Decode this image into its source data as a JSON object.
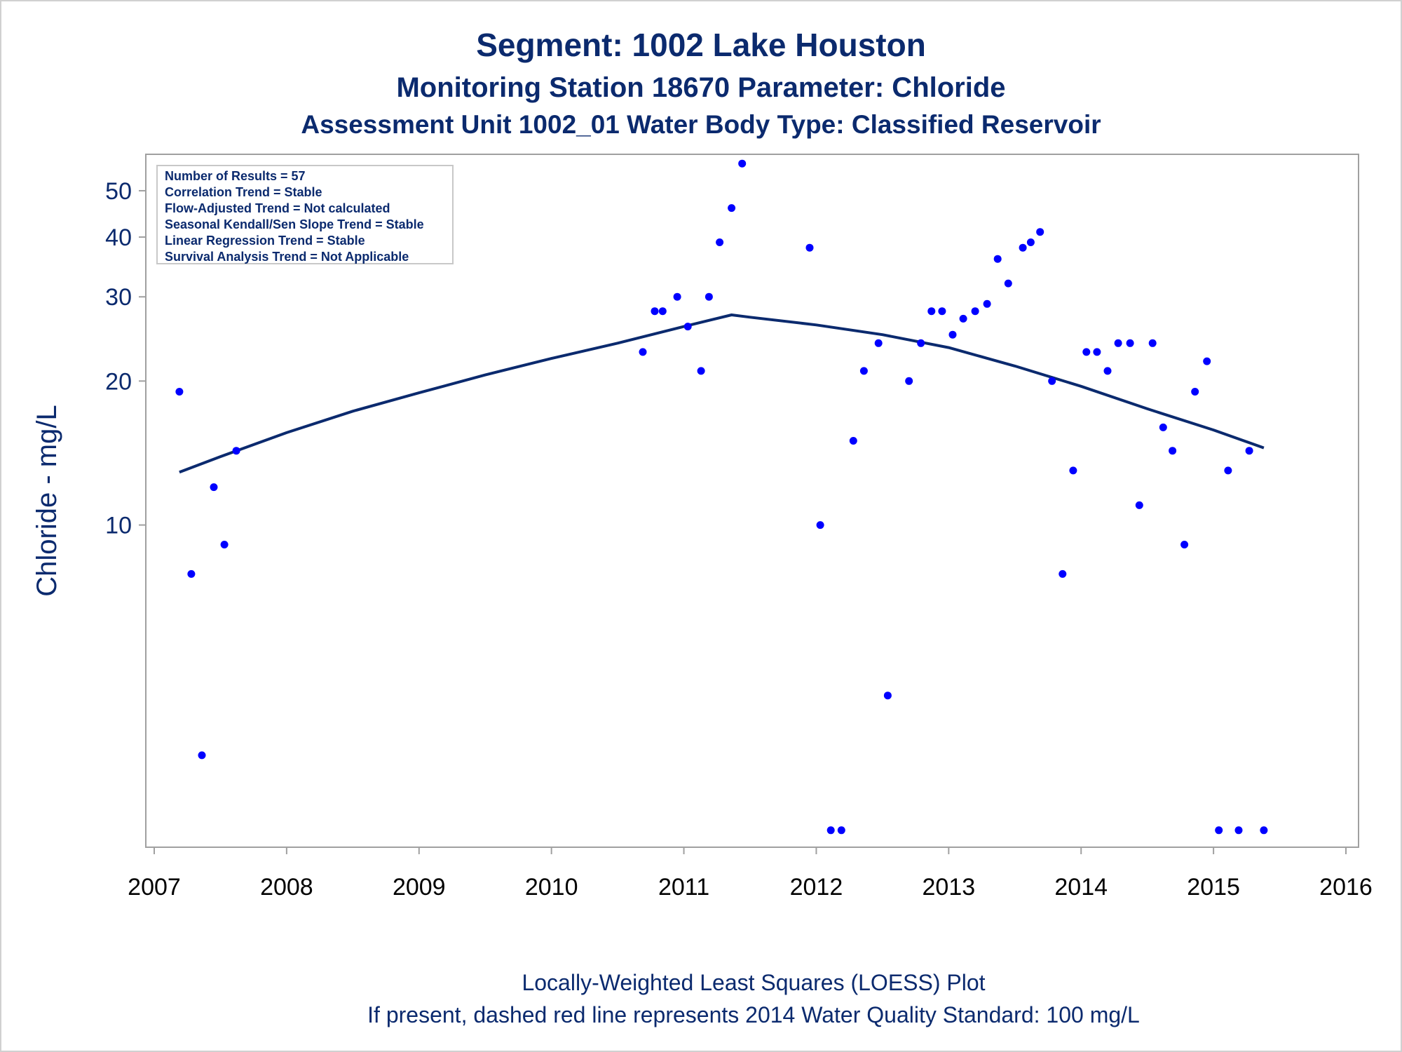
{
  "colors": {
    "text": "#0b2a6e",
    "points": "#0000ff",
    "trend_line": "#0b2a6e",
    "frame": "#a0a0a0"
  },
  "titles": {
    "line1": "Segment: 1002  Lake Houston",
    "line2": "Monitoring Station 18670 Parameter: Chloride",
    "line3": "Assessment Unit 1002_01   Water Body Type: Classified Reservoir"
  },
  "footnotes": {
    "line1": "Locally-Weighted Least Squares (LOESS) Plot",
    "line2": "If present, dashed red line represents 2014 Water Quality Standard: 100    mg/L"
  },
  "stats_box": [
    "Number of Results = 57",
    "Correlation Trend = Stable",
    "Flow-Adjusted Trend = Not calculated",
    "Seasonal Kendall/Sen Slope Trend = Stable",
    "Linear Regression Trend = Stable",
    "Survival Analysis Trend = Not Applicable"
  ],
  "chart_data": {
    "type": "scatter",
    "ylabel": "Chloride - mg/L",
    "xlabel": "",
    "y_scale": "log",
    "ylim": [
      2.2,
      58
    ],
    "xlim": [
      2007,
      2016
    ],
    "x_ticks": [
      "2007",
      "2008",
      "2009",
      "2010",
      "2011",
      "2012",
      "2013",
      "2014",
      "2015",
      "2016"
    ],
    "y_ticks": [
      10,
      20,
      30,
      40,
      50
    ],
    "grid": false,
    "legend": "top-left",
    "series": [
      {
        "points": [
          [
            2007.19,
            19
          ],
          [
            2007.28,
            7.9
          ],
          [
            2007.36,
            3.3
          ],
          [
            2007.45,
            12
          ],
          [
            2007.53,
            9.1
          ],
          [
            2007.62,
            14.3
          ],
          [
            2010.69,
            23
          ],
          [
            2010.78,
            28
          ],
          [
            2010.84,
            28
          ],
          [
            2010.95,
            30
          ],
          [
            2011.03,
            26
          ],
          [
            2011.13,
            21
          ],
          [
            2011.19,
            30
          ],
          [
            2011.27,
            39
          ],
          [
            2011.36,
            46
          ],
          [
            2011.44,
            57
          ],
          [
            2011.95,
            38
          ],
          [
            2012.03,
            10
          ],
          [
            2012.11,
            2.3
          ],
          [
            2012.19,
            2.3
          ],
          [
            2012.28,
            15
          ],
          [
            2012.36,
            21
          ],
          [
            2012.47,
            24
          ],
          [
            2012.54,
            4.4
          ],
          [
            2012.7,
            20
          ],
          [
            2012.79,
            24
          ],
          [
            2012.87,
            28
          ],
          [
            2012.95,
            28
          ],
          [
            2013.03,
            25
          ],
          [
            2013.11,
            27
          ],
          [
            2013.2,
            28
          ],
          [
            2013.29,
            29
          ],
          [
            2013.37,
            36
          ],
          [
            2013.45,
            32
          ],
          [
            2013.56,
            38
          ],
          [
            2013.62,
            39
          ],
          [
            2013.69,
            41
          ],
          [
            2013.78,
            20
          ],
          [
            2013.86,
            7.9
          ],
          [
            2013.94,
            13
          ],
          [
            2014.04,
            23
          ],
          [
            2014.12,
            23
          ],
          [
            2014.2,
            21
          ],
          [
            2014.28,
            24
          ],
          [
            2014.37,
            24
          ],
          [
            2014.44,
            11
          ],
          [
            2014.54,
            24
          ],
          [
            2014.62,
            16
          ],
          [
            2014.69,
            14.3
          ],
          [
            2014.78,
            9.1
          ],
          [
            2014.86,
            19
          ],
          [
            2014.95,
            22
          ],
          [
            2015.04,
            2.3
          ],
          [
            2015.11,
            13
          ],
          [
            2015.19,
            2.3
          ],
          [
            2015.27,
            14.3
          ],
          [
            2015.38,
            2.3
          ]
        ]
      }
    ],
    "loess": [
      [
        2007.19,
        12.9
      ],
      [
        2007.5,
        13.9
      ],
      [
        2008.0,
        15.6
      ],
      [
        2008.5,
        17.3
      ],
      [
        2009.0,
        18.9
      ],
      [
        2009.5,
        20.6
      ],
      [
        2010.0,
        22.3
      ],
      [
        2010.5,
        24.0
      ],
      [
        2011.0,
        26.0
      ],
      [
        2011.36,
        27.5
      ],
      [
        2011.5,
        27.2
      ],
      [
        2012.0,
        26.2
      ],
      [
        2012.5,
        25.0
      ],
      [
        2013.0,
        23.5
      ],
      [
        2013.5,
        21.5
      ],
      [
        2014.0,
        19.5
      ],
      [
        2014.5,
        17.5
      ],
      [
        2015.0,
        15.8
      ],
      [
        2015.38,
        14.5
      ]
    ]
  }
}
